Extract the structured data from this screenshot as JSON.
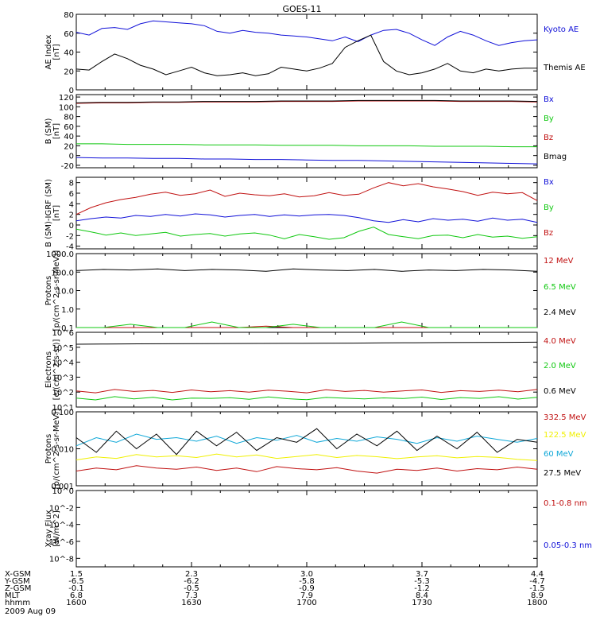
{
  "title": "GOES-11",
  "colors": {
    "black": "#000000",
    "blue": "#1010d8",
    "green": "#10c810",
    "red": "#c01010",
    "cyan": "#10a8d8",
    "yellow": "#f0f000"
  },
  "x_axis": {
    "rows": [
      {
        "label": "X-GSM",
        "values": [
          "1.5",
          "2.3",
          "3.0",
          "3.7",
          "4.4"
        ]
      },
      {
        "label": "Y-GSM",
        "values": [
          "-6.5",
          "-6.2",
          "-5.8",
          "-5.3",
          "-4.7"
        ]
      },
      {
        "label": "Z-GSM",
        "values": [
          "-0.1",
          "-0.5",
          "-0.9",
          "-1.2",
          "-1.5"
        ]
      },
      {
        "label": "MLT",
        "values": [
          "6.8",
          "7.3",
          "7.9",
          "8.4",
          "8.9"
        ]
      },
      {
        "label": "hhmm",
        "values": [
          "1600",
          "1630",
          "1700",
          "1730",
          "1800"
        ]
      }
    ],
    "date": "2009 Aug 09"
  },
  "chart_data": [
    {
      "type": "line",
      "ylabel": "AE Index",
      "yunit": "[nT]",
      "ylim": [
        0,
        80
      ],
      "yticks": [
        "0",
        "20",
        "40",
        "60",
        "80"
      ],
      "series": [
        {
          "name": "Kyoto AE",
          "color": "#1010d8",
          "values": [
            61,
            58,
            65,
            66,
            64,
            70,
            73,
            72,
            71,
            70,
            68,
            62,
            60,
            63,
            61,
            60,
            58,
            57,
            56,
            54,
            52,
            56,
            51,
            58,
            63,
            64,
            60,
            53,
            47,
            56,
            62,
            58,
            52,
            47,
            50,
            52,
            53
          ]
        },
        {
          "name": "Themis AE",
          "color": "#000000",
          "values": [
            22,
            21,
            30,
            38,
            33,
            26,
            22,
            16,
            20,
            24,
            18,
            15,
            16,
            18,
            15,
            17,
            24,
            22,
            20,
            23,
            28,
            45,
            52,
            58,
            30,
            20,
            16,
            18,
            22,
            28,
            20,
            18,
            22,
            20,
            22,
            23,
            23
          ]
        }
      ]
    },
    {
      "type": "line",
      "ylabel": "B (SM)",
      "yunit": "[nT]",
      "ylim": [
        -25,
        125
      ],
      "yticks": [
        "-20",
        "0",
        "20",
        "40",
        "60",
        "80",
        "100",
        "120"
      ],
      "series": [
        {
          "name": "Bx",
          "color": "#1010d8",
          "values": [
            -4,
            -5,
            -5,
            -6,
            -6,
            -7,
            -7,
            -8,
            -8,
            -9,
            -10,
            -10,
            -11,
            -12,
            -13,
            -14,
            -15,
            -16,
            -17
          ]
        },
        {
          "name": "By",
          "color": "#10c810",
          "values": [
            24,
            24,
            23,
            23,
            23,
            22,
            22,
            22,
            21,
            21,
            21,
            20,
            20,
            20,
            19,
            19,
            19,
            18,
            18
          ]
        },
        {
          "name": "Bz",
          "color": "#c01010",
          "values": [
            107,
            108,
            108,
            109,
            109,
            110,
            110,
            110,
            111,
            111,
            111,
            112,
            112,
            112,
            112,
            111,
            111,
            111,
            110
          ]
        },
        {
          "name": "Bmag",
          "color": "#000000",
          "values": [
            108,
            109,
            109,
            110,
            110,
            111,
            111,
            111,
            112,
            112,
            112,
            113,
            113,
            113,
            113,
            112,
            112,
            112,
            111
          ]
        }
      ]
    },
    {
      "type": "line",
      "ylabel": "B (SM)-IGRF (SM)",
      "yunit": "[nT]",
      "ylim": [
        -4.5,
        9
      ],
      "yticks": [
        "-4",
        "-2",
        "0",
        "2",
        "4",
        "6",
        "8"
      ],
      "series": [
        {
          "name": "Bx",
          "color": "#1010d8",
          "values": [
            0.8,
            1.2,
            1.5,
            1.3,
            1.8,
            1.6,
            2.0,
            1.7,
            2.1,
            1.9,
            1.5,
            1.8,
            2.0,
            1.6,
            1.9,
            1.7,
            1.9,
            2.0,
            1.8,
            1.4,
            0.8,
            0.5,
            1.0,
            0.6,
            1.2,
            0.9,
            1.1,
            0.7,
            1.3,
            0.9,
            1.1,
            0.5
          ]
        },
        {
          "name": "By",
          "color": "#10c810",
          "values": [
            -0.8,
            -1.3,
            -1.9,
            -1.5,
            -2.0,
            -1.7,
            -1.4,
            -2.1,
            -1.8,
            -1.6,
            -2.1,
            -1.7,
            -1.5,
            -1.9,
            -2.6,
            -1.8,
            -2.2,
            -2.7,
            -2.4,
            -1.2,
            -0.4,
            -1.8,
            -2.2,
            -2.6,
            -2.0,
            -1.9,
            -2.4,
            -1.8,
            -2.3,
            -2.1,
            -2.5,
            -2.2
          ]
        },
        {
          "name": "Bz",
          "color": "#c01010",
          "values": [
            2.0,
            3.3,
            4.2,
            4.8,
            5.2,
            5.8,
            6.2,
            5.6,
            5.9,
            6.6,
            5.4,
            6.0,
            5.7,
            5.5,
            5.9,
            5.3,
            5.5,
            6.1,
            5.6,
            5.8,
            7.0,
            8.0,
            7.4,
            7.8,
            7.2,
            6.8,
            6.3,
            5.6,
            6.2,
            5.9,
            6.1,
            4.6
          ]
        }
      ]
    },
    {
      "type": "line",
      "ylabel": "Protons",
      "yunit": "[p/(cm^2-s-sr-MeV)]",
      "yscale": "log",
      "ylim": [
        0.1,
        1000
      ],
      "yticks": [
        "0.1",
        "1.0",
        "10.0",
        "100.0",
        "1000.0"
      ],
      "series": [
        {
          "name": "12 MeV",
          "color": "#c01010",
          "values": [
            0.1,
            0.1,
            0.1,
            0.1,
            0.1,
            0.1,
            0.1,
            0.12,
            0.1,
            0.1,
            0.1,
            0.1,
            0.1,
            0.1,
            0.1,
            0.1,
            0.1,
            0.1
          ]
        },
        {
          "name": "6.5 MeV",
          "color": "#10c810",
          "values": [
            0.1,
            0.1,
            0.15,
            0.1,
            0.1,
            0.2,
            0.1,
            0.1,
            0.15,
            0.1,
            0.1,
            0.1,
            0.2,
            0.1,
            0.1,
            0.1,
            0.1,
            0.1
          ]
        },
        {
          "name": "2.4 MeV",
          "color": "#000000",
          "values": [
            120,
            140,
            130,
            150,
            120,
            140,
            130,
            110,
            150,
            130,
            120,
            140,
            110,
            130,
            120,
            140,
            130,
            110
          ]
        }
      ]
    },
    {
      "type": "line",
      "ylabel": "Electrons",
      "yunit": "[e/(cm^2-s-sr)]",
      "yscale": "log",
      "ylim": [
        10,
        1000000
      ],
      "yticks": [
        "10^1",
        "10^2",
        "10^3",
        "10^4",
        "10^5",
        "10^6"
      ],
      "series": [
        {
          "name": "4.0 MeV",
          "color": "#c01010",
          "values": [
            120,
            90,
            150,
            110,
            130,
            95,
            140,
            105,
            125,
            100,
            135,
            115,
            90,
            145,
            110,
            130,
            100,
            120,
            140,
            95,
            125,
            110,
            135,
            105,
            150
          ]
        },
        {
          "name": "2.0 MeV",
          "color": "#10c810",
          "values": [
            40,
            30,
            50,
            35,
            45,
            30,
            40,
            38,
            42,
            33,
            48,
            36,
            31,
            44,
            39,
            35,
            41,
            37,
            46,
            32,
            43,
            38,
            49,
            34,
            45
          ]
        },
        {
          "name": "0.6 MeV",
          "color": "#000000",
          "values": [
            160000,
            165000,
            170000,
            172000,
            175000,
            178000,
            180000,
            182000,
            185000,
            190000,
            195000,
            200000,
            205000,
            210000,
            215000,
            220000
          ]
        }
      ]
    },
    {
      "type": "line",
      "ylabel": "Protons",
      "yunit": "[p/(cm^2-s-sr-MeV)]",
      "yscale": "log",
      "ylim": [
        0.001,
        0.1
      ],
      "yticks": [
        "0.001",
        "0.010",
        "0.100"
      ],
      "series": [
        {
          "name": "332.5 MeV",
          "color": "#c01010",
          "values": [
            0.0025,
            0.003,
            0.0027,
            0.0035,
            0.003,
            0.0028,
            0.0032,
            0.0026,
            0.003,
            0.0024,
            0.0033,
            0.0029,
            0.0027,
            0.0031,
            0.0025,
            0.0022,
            0.0028,
            0.0026,
            0.003,
            0.0025,
            0.0029,
            0.0027,
            0.0032,
            0.0028
          ]
        },
        {
          "name": "122.5 MeV",
          "color": "#f0f000",
          "values": [
            0.005,
            0.006,
            0.0055,
            0.007,
            0.006,
            0.0065,
            0.0058,
            0.0072,
            0.006,
            0.0068,
            0.0055,
            0.0062,
            0.007,
            0.0058,
            0.0066,
            0.0061,
            0.0054,
            0.006,
            0.0065,
            0.0057,
            0.0062,
            0.0059,
            0.0052,
            0.0048
          ]
        },
        {
          "name": "60 MeV",
          "color": "#10a8d8",
          "values": [
            0.012,
            0.02,
            0.015,
            0.025,
            0.018,
            0.02,
            0.016,
            0.022,
            0.014,
            0.02,
            0.017,
            0.023,
            0.015,
            0.019,
            0.016,
            0.021,
            0.018,
            0.014,
            0.02,
            0.016,
            0.022,
            0.018,
            0.015,
            0.019
          ]
        },
        {
          "name": "27.5 MeV",
          "color": "#000000",
          "values": [
            0.02,
            0.008,
            0.03,
            0.01,
            0.025,
            0.007,
            0.03,
            0.012,
            0.028,
            0.009,
            0.02,
            0.015,
            0.035,
            0.01,
            0.025,
            0.012,
            0.03,
            0.009,
            0.022,
            0.01,
            0.028,
            0.008,
            0.018,
            0.015
          ]
        }
      ]
    },
    {
      "type": "line",
      "ylabel": "Xray Flux",
      "yunit": "[W/m^2]",
      "yscale": "log",
      "ylim": [
        1e-09,
        1
      ],
      "yticks": [
        "10^-8",
        "10^-6",
        "10^-4",
        "10^-2",
        "10^0"
      ],
      "series": [
        {
          "name": "0.1-0.8 nm",
          "color": "#c01010",
          "values": []
        },
        {
          "name": "0.05-0.3 nm",
          "color": "#1010d8",
          "values": []
        }
      ]
    }
  ]
}
